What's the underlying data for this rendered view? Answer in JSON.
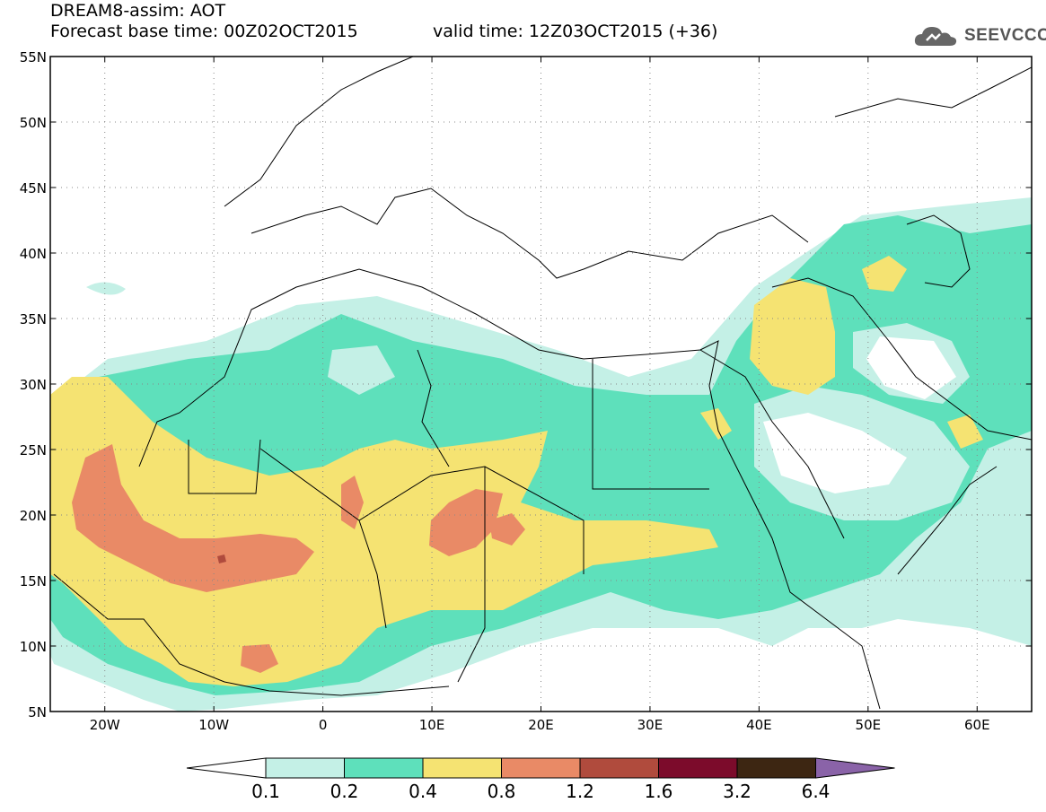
{
  "header": {
    "title": "DREAM8-assim: AOT",
    "base_time": "Forecast base time: 00Z02OCT2015",
    "valid_time": "valid time: 12Z03OCT2015 (+36)",
    "logo_text": "SEEVCCC"
  },
  "map": {
    "lat_labels": [
      "55N",
      "50N",
      "45N",
      "40N",
      "35N",
      "30N",
      "25N",
      "20N",
      "15N",
      "10N",
      "5N"
    ],
    "lon_labels": [
      "20W",
      "10W",
      "0",
      "10E",
      "20E",
      "30E",
      "40E",
      "50E",
      "60E"
    ],
    "extent": {
      "lon": [
        -25,
        65
      ],
      "lat": [
        5,
        55
      ]
    }
  },
  "legend": {
    "thresholds": [
      "0.1",
      "0.2",
      "0.4",
      "0.8",
      "1.2",
      "1.6",
      "3.2",
      "6.4"
    ],
    "colors": [
      "#ffffff",
      "#c4f0e6",
      "#5ee0bb",
      "#f5e372",
      "#e98a66",
      "#b04b3d",
      "#7c0b2b",
      "#3d2612",
      "#8a63a8"
    ]
  }
}
